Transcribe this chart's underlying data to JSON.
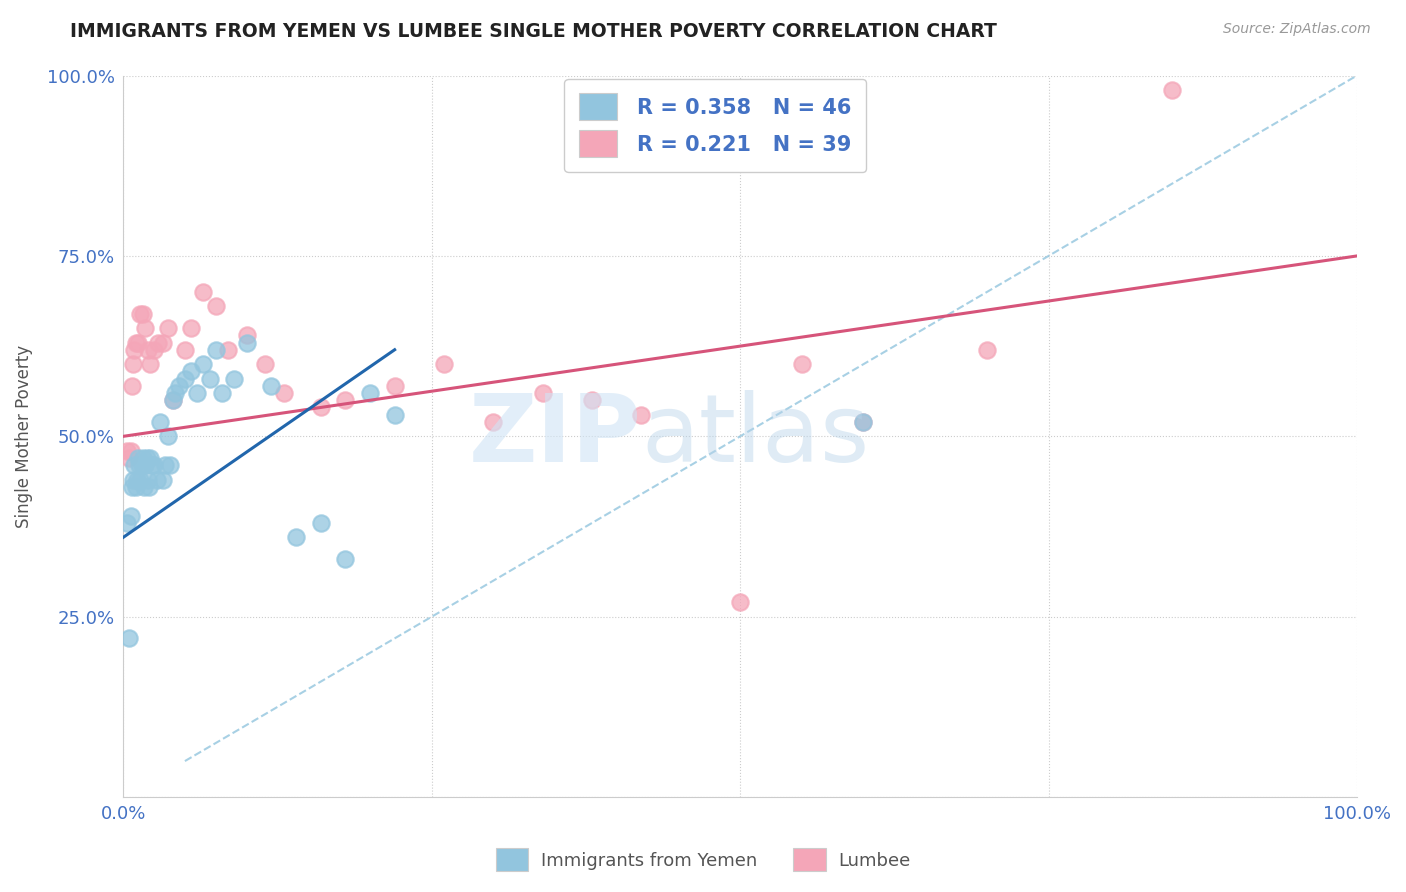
{
  "title": "IMMIGRANTS FROM YEMEN VS LUMBEE SINGLE MOTHER POVERTY CORRELATION CHART",
  "source": "Source: ZipAtlas.com",
  "ylabel": "Single Mother Poverty",
  "xlim": [
    0,
    1
  ],
  "ylim": [
    0,
    1
  ],
  "blue_color": "#92c5de",
  "pink_color": "#f4a6b8",
  "blue_line_color": "#2166ac",
  "pink_line_color": "#d6547a",
  "dashed_line_color": "#92c5de",
  "R_blue": 0.358,
  "N_blue": 46,
  "R_pink": 0.221,
  "N_pink": 39,
  "watermark_zip": "ZIP",
  "watermark_atlas": "atlas",
  "blue_scatter_x": [
    0.003,
    0.005,
    0.006,
    0.007,
    0.008,
    0.009,
    0.01,
    0.011,
    0.012,
    0.013,
    0.014,
    0.015,
    0.016,
    0.017,
    0.018,
    0.019,
    0.02,
    0.021,
    0.022,
    0.023,
    0.025,
    0.027,
    0.03,
    0.032,
    0.034,
    0.036,
    0.038,
    0.04,
    0.042,
    0.045,
    0.05,
    0.055,
    0.06,
    0.065,
    0.07,
    0.075,
    0.08,
    0.09,
    0.1,
    0.12,
    0.14,
    0.16,
    0.18,
    0.2,
    0.22,
    0.6
  ],
  "blue_scatter_y": [
    0.38,
    0.22,
    0.39,
    0.43,
    0.44,
    0.46,
    0.43,
    0.44,
    0.47,
    0.46,
    0.44,
    0.46,
    0.47,
    0.43,
    0.46,
    0.47,
    0.44,
    0.43,
    0.47,
    0.46,
    0.46,
    0.44,
    0.52,
    0.44,
    0.46,
    0.5,
    0.46,
    0.55,
    0.56,
    0.57,
    0.58,
    0.59,
    0.56,
    0.6,
    0.58,
    0.62,
    0.56,
    0.58,
    0.63,
    0.57,
    0.36,
    0.38,
    0.33,
    0.56,
    0.53,
    0.52
  ],
  "pink_scatter_x": [
    0.003,
    0.005,
    0.006,
    0.007,
    0.008,
    0.009,
    0.01,
    0.012,
    0.014,
    0.016,
    0.018,
    0.02,
    0.022,
    0.025,
    0.028,
    0.032,
    0.036,
    0.04,
    0.05,
    0.055,
    0.065,
    0.075,
    0.085,
    0.1,
    0.115,
    0.13,
    0.16,
    0.18,
    0.22,
    0.26,
    0.3,
    0.34,
    0.38,
    0.42,
    0.5,
    0.55,
    0.6,
    0.7,
    0.85
  ],
  "pink_scatter_y": [
    0.48,
    0.47,
    0.48,
    0.57,
    0.6,
    0.62,
    0.63,
    0.63,
    0.67,
    0.67,
    0.65,
    0.62,
    0.6,
    0.62,
    0.63,
    0.63,
    0.65,
    0.55,
    0.62,
    0.65,
    0.7,
    0.68,
    0.62,
    0.64,
    0.6,
    0.56,
    0.54,
    0.55,
    0.57,
    0.6,
    0.52,
    0.56,
    0.55,
    0.53,
    0.27,
    0.6,
    0.52,
    0.62,
    0.98
  ],
  "blue_line_x0": 0.0,
  "blue_line_y0": 0.36,
  "blue_line_x1": 0.22,
  "blue_line_y1": 0.62,
  "pink_line_x0": 0.0,
  "pink_line_y0": 0.5,
  "pink_line_x1": 1.0,
  "pink_line_y1": 0.75
}
